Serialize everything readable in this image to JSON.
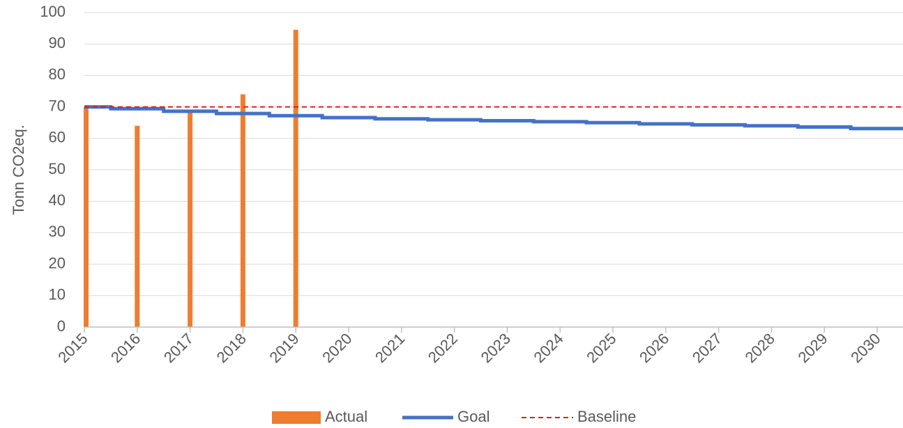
{
  "chart_data": {
    "type": "bar",
    "title": "",
    "xlabel": "",
    "ylabel": "Tonn CO2eq.",
    "ylim": [
      0,
      100
    ],
    "y_ticks": [
      0,
      10,
      20,
      30,
      40,
      50,
      60,
      70,
      80,
      90,
      100
    ],
    "categories": [
      "2015",
      "2016",
      "2017",
      "2018",
      "2019",
      "2020",
      "2021",
      "2022",
      "2023",
      "2024",
      "2025",
      "2026",
      "2027",
      "2028",
      "2029",
      "2030"
    ],
    "grid": true,
    "legend_position": "bottom",
    "series": [
      {
        "name": "Actual",
        "kind": "bar",
        "color": "#ED7D31",
        "values": [
          70,
          64,
          69,
          74,
          94.5,
          null,
          null,
          null,
          null,
          null,
          null,
          null,
          null,
          null,
          null,
          null
        ]
      },
      {
        "name": "Goal",
        "kind": "step-line",
        "color": "#4472C4",
        "values": [
          70,
          69.4,
          68.6,
          67.9,
          67.2,
          66.6,
          66.2,
          65.9,
          65.6,
          65.3,
          65.0,
          64.6,
          64.3,
          64.0,
          63.6,
          63.1
        ]
      },
      {
        "name": "Baseline",
        "kind": "dashed-line",
        "color": "#E31A1C",
        "value": 70
      }
    ]
  }
}
